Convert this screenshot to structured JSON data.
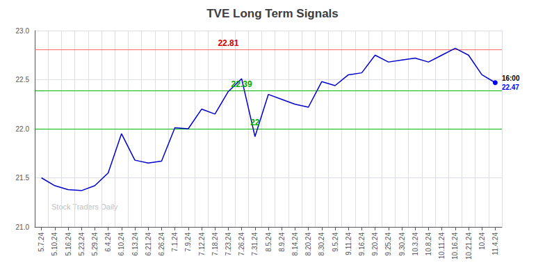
{
  "chart_data": {
    "type": "line",
    "title": "TVE Long Term Signals",
    "categories": [
      "5.7.24",
      "5.10.24",
      "5.16.24",
      "5.23.24",
      "5.29.24",
      "6.4.24",
      "6.10.24",
      "6.13.24",
      "6.21.24",
      "6.26.24",
      "7.1.24",
      "7.9.24",
      "7.12.24",
      "7.18.24",
      "7.23.24",
      "7.26.24",
      "7.31.24",
      "8.5.24",
      "8.9.24",
      "8.14.24",
      "8.20.24",
      "8.30.24",
      "9.5.24",
      "9.11.24",
      "9.16.24",
      "9.20.24",
      "9.25.24",
      "9.30.24",
      "10.3.24",
      "10.8.24",
      "10.11.24",
      "10.16.24",
      "10.21.24",
      "10.24",
      "11.4.24"
    ],
    "values": [
      21.5,
      21.42,
      21.38,
      21.37,
      21.42,
      21.55,
      21.95,
      21.68,
      21.65,
      21.67,
      22.01,
      22.0,
      22.2,
      22.15,
      22.38,
      22.51,
      21.92,
      22.35,
      22.3,
      22.25,
      22.22,
      22.48,
      22.44,
      22.55,
      22.57,
      22.75,
      22.68,
      22.7,
      22.72,
      22.68,
      22.75,
      22.82,
      22.75,
      22.55,
      22.47
    ],
    "color": "#0000CC",
    "ylim": [
      21.0,
      23.0
    ],
    "yticks": [
      {
        "value": 21.0,
        "label": "21.0"
      },
      {
        "value": 21.5,
        "label": "21.5"
      },
      {
        "value": 22.0,
        "label": "22.0"
      },
      {
        "value": 22.5,
        "label": "22.5"
      },
      {
        "value": 23.0,
        "label": "23.0"
      }
    ],
    "grid": true,
    "reference_lines": [
      {
        "value": 22.81,
        "color": "#FF6666"
      },
      {
        "value": 22.39,
        "color": "#00BB00"
      },
      {
        "value": 22.0,
        "color": "#00BB00"
      }
    ],
    "annotations": [
      {
        "text": "22.81",
        "x": "7.23.24",
        "y": 22.81,
        "color": "#CC0000"
      },
      {
        "text": "22.39",
        "x": "7.26.24",
        "y": 22.39,
        "color": "#00AA00"
      },
      {
        "text": "22",
        "x": "7.31.24",
        "y": 22.0,
        "color": "#00AA00"
      }
    ],
    "last_point": {
      "time_label": "16:00",
      "value_label": "22.47",
      "color": "#0000FF"
    },
    "watermark": "Stock Traders Daily"
  }
}
